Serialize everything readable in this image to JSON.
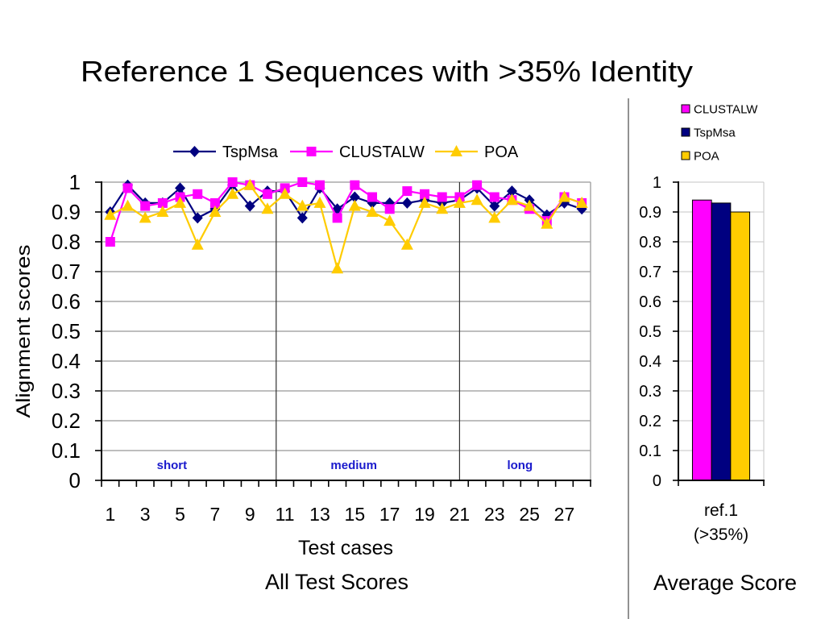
{
  "slide": {
    "title": "Reference 1 Sequences with >35% Identity"
  },
  "chart_data": [
    {
      "type": "line",
      "caption": "All Test Scores",
      "xlabel": "Test cases",
      "ylabel": "Alignment scores",
      "ylim": [
        0,
        1
      ],
      "yticks": [
        "0",
        "0.1",
        "0.2",
        "0.3",
        "0.4",
        "0.5",
        "0.6",
        "0.7",
        "0.8",
        "0.9",
        "1"
      ],
      "x": [
        1,
        2,
        3,
        4,
        5,
        6,
        7,
        8,
        9,
        10,
        11,
        12,
        13,
        14,
        15,
        16,
        17,
        18,
        19,
        20,
        21,
        22,
        23,
        24,
        25,
        26,
        27,
        28
      ],
      "xtick_labels": [
        "1",
        "3",
        "5",
        "7",
        "9",
        "11",
        "13",
        "15",
        "17",
        "19",
        "21",
        "23",
        "25",
        "27"
      ],
      "grid": true,
      "legend": "top",
      "section_label_color": "#1a1acc",
      "sections": [
        {
          "label": "short",
          "from": 1,
          "to": 10
        },
        {
          "label": "medium",
          "from": 11,
          "to": 20
        },
        {
          "label": "long",
          "from": 21,
          "to": 28
        }
      ],
      "dividers": [
        10.5,
        21
      ],
      "series": [
        {
          "name": "TspMsa",
          "color": "#000080",
          "marker": "diamond",
          "values": [
            0.9,
            0.99,
            0.93,
            0.93,
            0.98,
            0.88,
            0.91,
            0.99,
            0.92,
            0.97,
            0.97,
            0.88,
            0.98,
            0.91,
            0.95,
            0.93,
            0.93,
            0.93,
            0.94,
            0.93,
            0.94,
            0.98,
            0.92,
            0.97,
            0.94,
            0.89,
            0.93,
            0.91
          ]
        },
        {
          "name": "CLUSTALW",
          "color": "#ff00ff",
          "marker": "square",
          "values": [
            0.8,
            0.98,
            0.92,
            0.93,
            0.95,
            0.96,
            0.93,
            1.0,
            0.99,
            0.96,
            0.98,
            1.0,
            0.99,
            0.88,
            0.99,
            0.95,
            0.91,
            0.97,
            0.96,
            0.95,
            0.95,
            0.99,
            0.95,
            0.94,
            0.91,
            0.87,
            0.95,
            0.93
          ]
        },
        {
          "name": "POA",
          "color": "#ffcc00",
          "marker": "triangle",
          "values": [
            0.89,
            0.92,
            0.88,
            0.9,
            0.93,
            0.79,
            0.9,
            0.96,
            0.99,
            0.91,
            0.96,
            0.92,
            0.93,
            0.71,
            0.92,
            0.9,
            0.87,
            0.79,
            0.93,
            0.91,
            0.93,
            0.94,
            0.88,
            0.94,
            0.92,
            0.86,
            0.95,
            0.93
          ]
        }
      ]
    },
    {
      "type": "bar",
      "caption": "Average Score",
      "categories": [
        [
          "ref.1",
          "(>35%)"
        ]
      ],
      "ylim": [
        0,
        1
      ],
      "yticks": [
        "0",
        "0.1",
        "0.2",
        "0.3",
        "0.4",
        "0.5",
        "0.6",
        "0.7",
        "0.8",
        "0.9",
        "1"
      ],
      "grid": true,
      "legend": "top-right",
      "series": [
        {
          "name": "CLUSTALW",
          "color": "#ff00ff",
          "values": [
            0.94
          ]
        },
        {
          "name": "TspMsa",
          "color": "#000080",
          "values": [
            0.93
          ]
        },
        {
          "name": "POA",
          "color": "#ffcc00",
          "values": [
            0.9
          ]
        }
      ]
    }
  ]
}
